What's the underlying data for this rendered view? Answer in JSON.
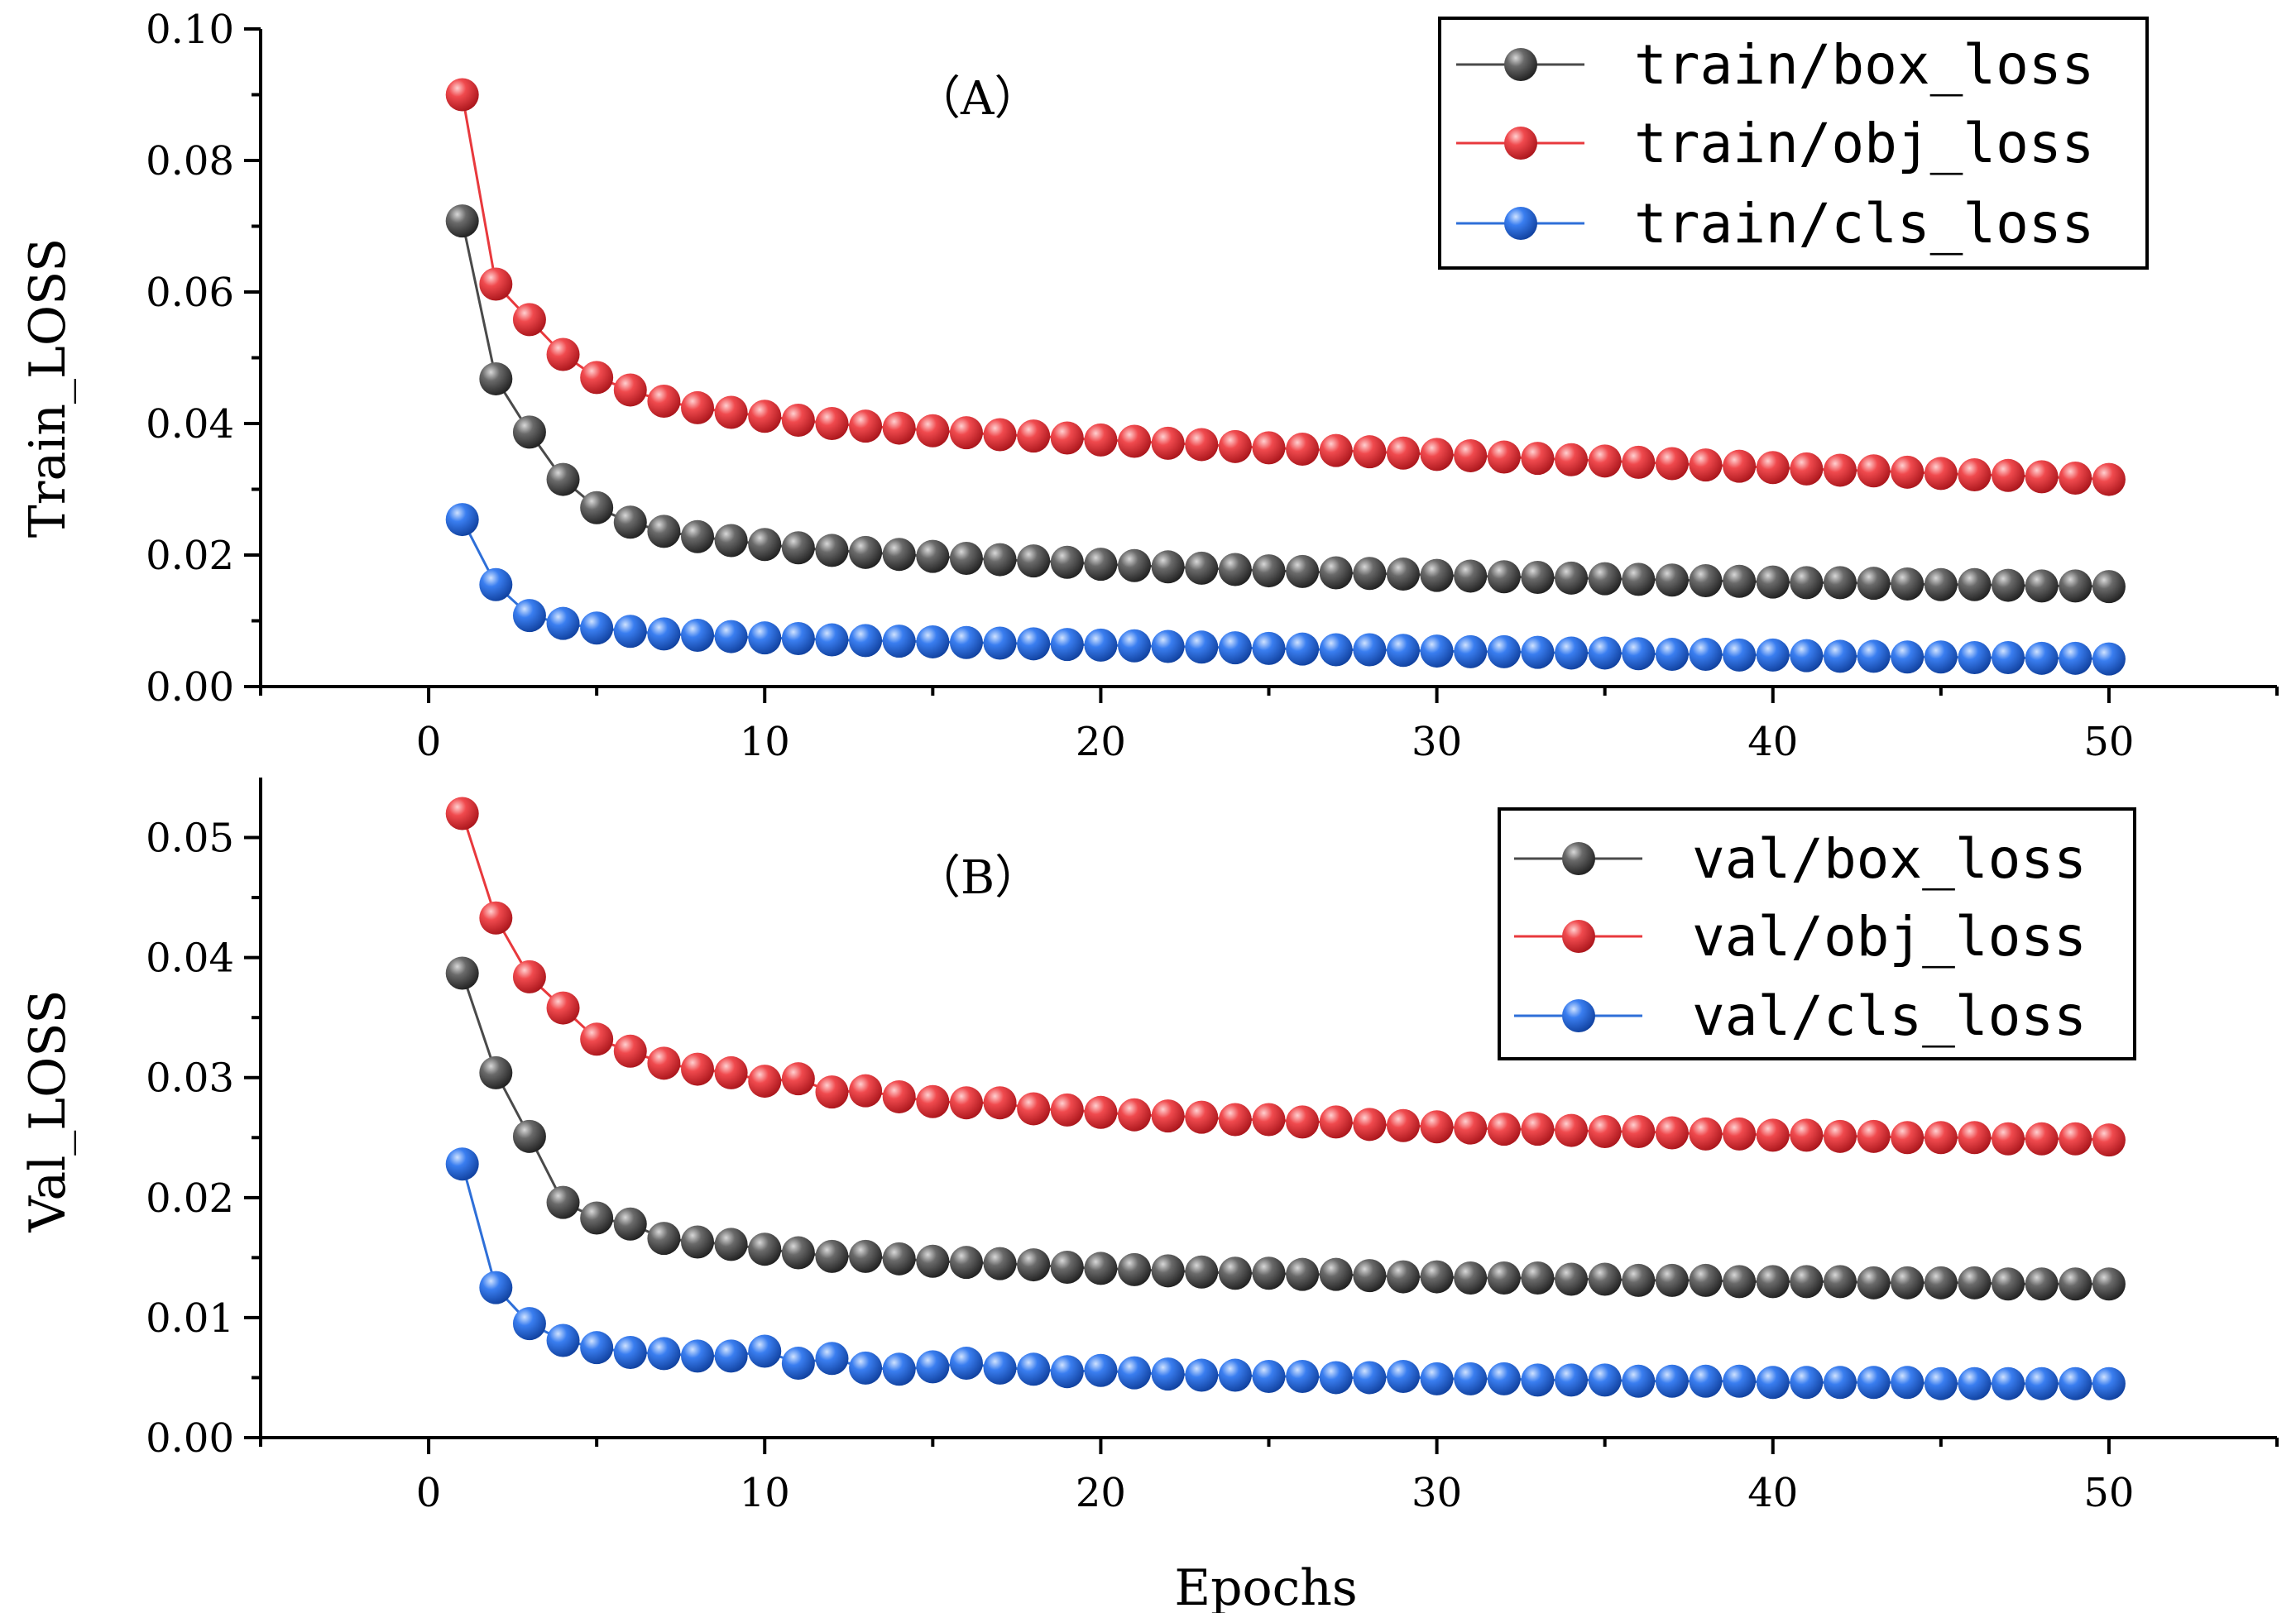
{
  "chart_data": [
    {
      "type": "line",
      "panel_label": "（A）",
      "ylabel": "Train_LOSS",
      "xlabel": "",
      "xlim": [
        -5,
        55
      ],
      "ylim": [
        0,
        0.1
      ],
      "xticks": [
        0,
        10,
        20,
        30,
        40,
        50
      ],
      "xtick_labels": [
        "0",
        "10",
        "20",
        "30",
        "40",
        "50"
      ],
      "yticks": [
        0,
        0.02,
        0.04,
        0.06,
        0.08,
        0.1
      ],
      "ytick_labels": [
        "0.00",
        "0.02",
        "0.04",
        "0.06",
        "0.08",
        "0.10"
      ],
      "legend_position": "top-right",
      "x": [
        1,
        2,
        3,
        4,
        5,
        6,
        7,
        8,
        9,
        10,
        11,
        12,
        13,
        14,
        15,
        16,
        17,
        18,
        19,
        20,
        21,
        22,
        23,
        24,
        25,
        26,
        27,
        28,
        29,
        30,
        31,
        32,
        33,
        34,
        35,
        36,
        37,
        38,
        39,
        40,
        41,
        42,
        43,
        44,
        45,
        46,
        47,
        48,
        49,
        50
      ],
      "series": [
        {
          "name": "train/box_loss",
          "color": "#4a4a4a",
          "values": [
            0.0708,
            0.0468,
            0.0387,
            0.0315,
            0.0272,
            0.025,
            0.0236,
            0.0228,
            0.0222,
            0.0216,
            0.0211,
            0.0207,
            0.0204,
            0.0201,
            0.0198,
            0.0195,
            0.0193,
            0.0191,
            0.0189,
            0.0186,
            0.0184,
            0.0182,
            0.018,
            0.0178,
            0.0176,
            0.0175,
            0.0173,
            0.0172,
            0.0171,
            0.0169,
            0.0168,
            0.0167,
            0.0166,
            0.0165,
            0.0164,
            0.0163,
            0.0162,
            0.0161,
            0.016,
            0.0159,
            0.0158,
            0.0158,
            0.0157,
            0.0156,
            0.0155,
            0.0155,
            0.0154,
            0.0153,
            0.0153,
            0.0152
          ]
        },
        {
          "name": "train/obj_loss",
          "color": "#e8393d",
          "values": [
            0.09,
            0.0612,
            0.0558,
            0.0505,
            0.047,
            0.0451,
            0.0434,
            0.0424,
            0.0417,
            0.0411,
            0.0405,
            0.04,
            0.0396,
            0.0393,
            0.0389,
            0.0386,
            0.0383,
            0.0381,
            0.0378,
            0.0375,
            0.0373,
            0.037,
            0.0368,
            0.0365,
            0.0363,
            0.0361,
            0.0359,
            0.0357,
            0.0355,
            0.0353,
            0.0351,
            0.0349,
            0.0347,
            0.0345,
            0.0343,
            0.0341,
            0.0339,
            0.0337,
            0.0335,
            0.0333,
            0.0331,
            0.0329,
            0.0328,
            0.0326,
            0.0324,
            0.0322,
            0.0321,
            0.0319,
            0.0317,
            0.0315
          ]
        },
        {
          "name": "train/cls_loss",
          "color": "#2e6fd8",
          "values": [
            0.0254,
            0.0155,
            0.0108,
            0.0096,
            0.0089,
            0.0084,
            0.008,
            0.0078,
            0.0076,
            0.0074,
            0.0073,
            0.0071,
            0.007,
            0.0069,
            0.0068,
            0.0067,
            0.0066,
            0.0065,
            0.0064,
            0.0063,
            0.0062,
            0.0061,
            0.006,
            0.0059,
            0.0058,
            0.0057,
            0.0056,
            0.0056,
            0.0055,
            0.0054,
            0.0053,
            0.0053,
            0.0052,
            0.0051,
            0.0051,
            0.005,
            0.0049,
            0.0049,
            0.0048,
            0.0048,
            0.0047,
            0.0046,
            0.0046,
            0.0045,
            0.0045,
            0.0044,
            0.0044,
            0.0043,
            0.0043,
            0.0042
          ]
        }
      ]
    },
    {
      "type": "line",
      "panel_label": "（B）",
      "ylabel": "Val_LOSS",
      "xlabel": "Epochs",
      "xlim": [
        -5,
        55
      ],
      "ylim": [
        0,
        0.055
      ],
      "xticks": [
        0,
        10,
        20,
        30,
        40,
        50
      ],
      "xtick_labels": [
        "0",
        "10",
        "20",
        "30",
        "40",
        "50"
      ],
      "yticks": [
        0,
        0.01,
        0.02,
        0.03,
        0.04,
        0.05
      ],
      "ytick_labels": [
        "0.00",
        "0.01",
        "0.02",
        "0.03",
        "0.04",
        "0.05"
      ],
      "legend_position": "top-right",
      "x": [
        1,
        2,
        3,
        4,
        5,
        6,
        7,
        8,
        9,
        10,
        11,
        12,
        13,
        14,
        15,
        16,
        17,
        18,
        19,
        20,
        21,
        22,
        23,
        24,
        25,
        26,
        27,
        28,
        29,
        30,
        31,
        32,
        33,
        34,
        35,
        36,
        37,
        38,
        39,
        40,
        41,
        42,
        43,
        44,
        45,
        46,
        47,
        48,
        49,
        50
      ],
      "series": [
        {
          "name": "val/box_loss",
          "color": "#4a4a4a",
          "values": [
            0.0387,
            0.0304,
            0.0251,
            0.0196,
            0.0183,
            0.0178,
            0.0166,
            0.0163,
            0.0161,
            0.0157,
            0.0154,
            0.0151,
            0.0151,
            0.0149,
            0.0147,
            0.0146,
            0.0145,
            0.0144,
            0.0142,
            0.0141,
            0.014,
            0.0139,
            0.0138,
            0.0137,
            0.0137,
            0.0136,
            0.0136,
            0.0135,
            0.0134,
            0.0134,
            0.0133,
            0.0133,
            0.0133,
            0.0132,
            0.0132,
            0.0131,
            0.0131,
            0.0131,
            0.013,
            0.013,
            0.013,
            0.013,
            0.0129,
            0.0129,
            0.0129,
            0.0129,
            0.0128,
            0.0128,
            0.0128,
            0.0128
          ]
        },
        {
          "name": "val/obj_loss",
          "color": "#e8393d",
          "values": [
            0.052,
            0.0433,
            0.0384,
            0.0358,
            0.0332,
            0.0322,
            0.0312,
            0.0307,
            0.0304,
            0.0297,
            0.0299,
            0.0288,
            0.0289,
            0.0284,
            0.028,
            0.0279,
            0.0279,
            0.0274,
            0.0273,
            0.0271,
            0.0269,
            0.0268,
            0.0267,
            0.0265,
            0.0265,
            0.0263,
            0.0263,
            0.0261,
            0.026,
            0.0259,
            0.0258,
            0.0257,
            0.0257,
            0.0256,
            0.0255,
            0.0255,
            0.0254,
            0.0253,
            0.0253,
            0.0252,
            0.0252,
            0.0251,
            0.0251,
            0.025,
            0.025,
            0.025,
            0.0249,
            0.0249,
            0.0249,
            0.0248
          ]
        },
        {
          "name": "val/cls_loss",
          "color": "#2e6fd8",
          "values": [
            0.0228,
            0.0125,
            0.0095,
            0.0081,
            0.0075,
            0.0071,
            0.007,
            0.0068,
            0.0068,
            0.0072,
            0.0062,
            0.0066,
            0.0058,
            0.0057,
            0.0059,
            0.0062,
            0.0058,
            0.0057,
            0.0055,
            0.0056,
            0.0054,
            0.0053,
            0.0052,
            0.0052,
            0.0051,
            0.0051,
            0.005,
            0.005,
            0.0051,
            0.0049,
            0.0049,
            0.0049,
            0.0048,
            0.0048,
            0.0048,
            0.0047,
            0.0047,
            0.0047,
            0.0047,
            0.0046,
            0.0046,
            0.0046,
            0.0046,
            0.0046,
            0.0045,
            0.0045,
            0.0045,
            0.0045,
            0.0045,
            0.0045
          ]
        }
      ]
    }
  ]
}
